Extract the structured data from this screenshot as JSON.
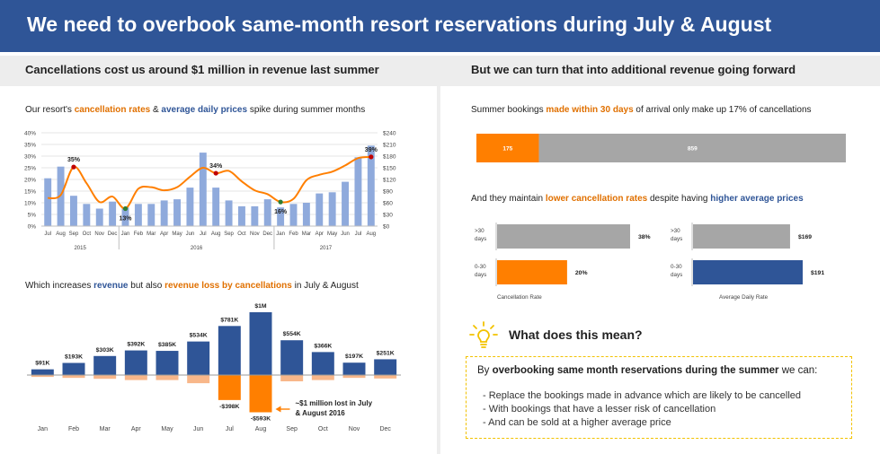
{
  "header": {
    "title": "We need to overbook same-month resort reservations during July & August"
  },
  "left": {
    "subtitle": "Cancellations cost us around $1 million in revenue last summer",
    "line_chart_intro": {
      "pre": "Our resort's ",
      "hl1": "cancellation rates",
      "mid": " & ",
      "hl2": "average daily prices",
      "post": " spike during summer months"
    },
    "revenue_chart_intro": {
      "pre": "Which increases ",
      "hl1": "revenue",
      "mid": " but also ",
      "hl2": "revenue loss by cancellations",
      "post": " in July & August"
    }
  },
  "right": {
    "subtitle": "But we can turn that into additional revenue going forward",
    "bookings_intro": {
      "pre": "Summer bookings ",
      "hl1": "made within 30 days",
      "post": " of arrival only make up 17% of cancellations"
    },
    "maintain_intro": {
      "pre": "And they maintain ",
      "hl1": "lower cancellation rates",
      "mid": " despite having ",
      "hl2": "higher average prices"
    },
    "insight": {
      "title": "What does this mean?",
      "head_pre": "By ",
      "head_bold": "overbooking same month reservations during the summer",
      "head_post": " we can:",
      "bullets": [
        "- Replace the bookings made in advance which are likely to be cancelled",
        "- With bookings that have a lesser risk of cancellation",
        "- And can be sold at a higher average price"
      ]
    }
  },
  "colors": {
    "navy": "#2f5597",
    "orange": "#ff7f00",
    "light_blue": "#8faadc",
    "gray": "#a6a6a6",
    "peach": "#f8b78a",
    "yellow": "#f2c200"
  },
  "chart_data": [
    {
      "type": "bar",
      "name": "cancellation-rate-and-adr",
      "categories": [
        "Jul",
        "Aug",
        "Sep",
        "Oct",
        "Nov",
        "Dec",
        "Jan",
        "Feb",
        "Mar",
        "Apr",
        "May",
        "Jun",
        "Jul",
        "Aug",
        "Sep",
        "Oct",
        "Nov",
        "Dec",
        "Jan",
        "Feb",
        "Mar",
        "Apr",
        "May",
        "Jun",
        "Jul",
        "Aug"
      ],
      "years": [
        {
          "label": "2015",
          "from": 0,
          "to": 5
        },
        {
          "label": "2016",
          "from": 6,
          "to": 17
        },
        {
          "label": "2017",
          "from": 18,
          "to": 25
        }
      ],
      "series": [
        {
          "name": "Cancellation Rate",
          "kind": "bar",
          "axis": "left",
          "values": [
            20.5,
            25.5,
            13,
            9.5,
            7.5,
            10.5,
            8,
            9.5,
            9.5,
            11,
            11.5,
            16.5,
            31.5,
            16.5,
            11,
            8.5,
            8.5,
            11.5,
            8,
            9.5,
            10,
            14,
            14.5,
            19,
            29.5,
            34.5
          ]
        },
        {
          "name": "Average Daily Rate",
          "kind": "line",
          "axis": "right",
          "values": [
            72,
            80,
            152,
            110,
            62,
            76,
            45,
            96,
            100,
            92,
            100,
            127,
            150,
            136,
            142,
            115,
            92,
            82,
            62,
            70,
            118,
            132,
            140,
            156,
            175,
            178
          ]
        }
      ],
      "ylim_left": [
        0,
        40
      ],
      "yticks_left": [
        "0%",
        "5%",
        "10%",
        "15%",
        "20%",
        "25%",
        "30%",
        "35%",
        "40%"
      ],
      "ylim_right": [
        0,
        240
      ],
      "yticks_right": [
        "$0",
        "$30",
        "$60",
        "$90",
        "$120",
        "$150",
        "$180",
        "$210",
        "$240"
      ],
      "annotations": [
        {
          "index": 2,
          "label": "35%",
          "color": "#c00000"
        },
        {
          "index": 6,
          "label": "13%",
          "color": "#2e7d32"
        },
        {
          "index": 13,
          "label": "34%",
          "color": "#c00000"
        },
        {
          "index": 18,
          "label": "16%",
          "color": "#2e7d32"
        },
        {
          "index": 25,
          "label": "39%",
          "color": "#c00000"
        }
      ]
    },
    {
      "type": "bar",
      "name": "revenue-vs-loss",
      "categories": [
        "Jan",
        "Feb",
        "Mar",
        "Apr",
        "May",
        "Jun",
        "Jul",
        "Aug",
        "Sep",
        "Oct",
        "Nov",
        "Dec"
      ],
      "series": [
        {
          "name": "Revenue",
          "values": [
            91,
            193,
            303,
            392,
            385,
            534,
            781,
            1000,
            554,
            366,
            197,
            251
          ],
          "labels": [
            "$91K",
            "$193K",
            "$303K",
            "$392K",
            "$385K",
            "$534K",
            "$781K",
            "$1M",
            "$554K",
            "$366K",
            "$197K",
            "$251K"
          ]
        },
        {
          "name": "Revenue Lost",
          "values": [
            -30,
            -45,
            -60,
            -80,
            -80,
            -130,
            -398,
            -593,
            -100,
            -80,
            -45,
            -55
          ],
          "labels": [
            "",
            "",
            "",
            "",
            "",
            "",
            "-$398K",
            "-$593K",
            "",
            "",
            "",
            ""
          ]
        }
      ],
      "callout": {
        "line1": "~$1 million lost in July",
        "line2": "& August 2016"
      }
    },
    {
      "type": "bar",
      "name": "bookings-split",
      "categories": [
        "Within 30 days",
        "More than 30 days"
      ],
      "values": [
        175,
        859
      ],
      "labels": [
        "175",
        "859"
      ]
    },
    {
      "type": "bar",
      "name": "cancellation-rate-by-lead",
      "xlabel": "Cancellation Rate",
      "categories": [
        ">30 days",
        "0-30 days"
      ],
      "values": [
        38,
        20
      ],
      "labels": [
        "38%",
        "20%"
      ]
    },
    {
      "type": "bar",
      "name": "adr-by-lead",
      "xlabel": "Average Daily Rate",
      "categories": [
        ">30 days",
        "0-30 days"
      ],
      "values": [
        169,
        191
      ],
      "labels": [
        "$169",
        "$191"
      ]
    }
  ]
}
